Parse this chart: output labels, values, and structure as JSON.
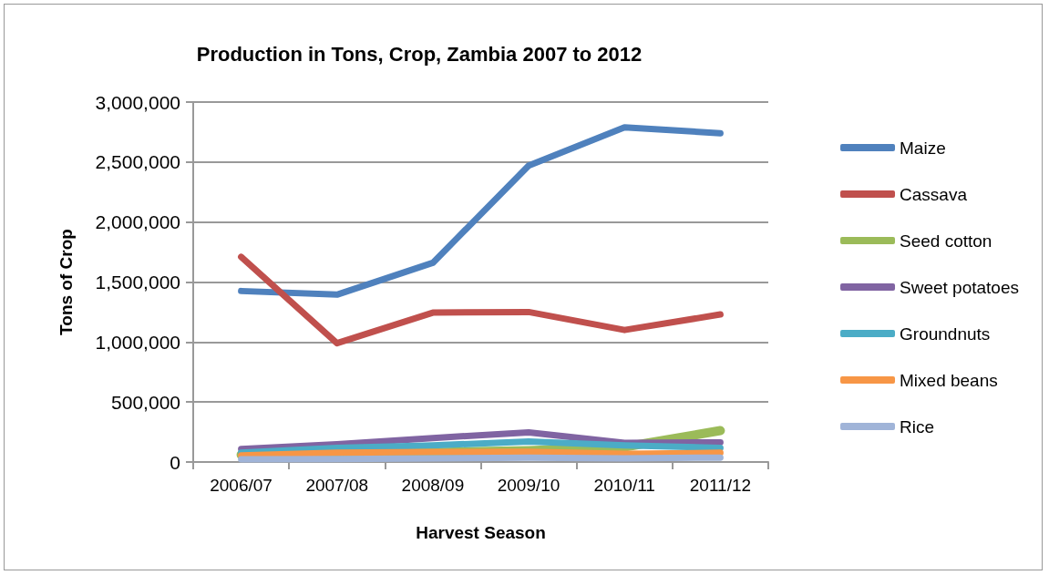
{
  "chart_data": {
    "type": "line",
    "title": "Production in Tons, Crop, Zambia 2007 to 2012",
    "xlabel": "Harvest Season",
    "ylabel": "Tons of Crop",
    "categories": [
      "2006/07",
      "2007/08",
      "2008/09",
      "2009/10",
      "2010/11",
      "2011/12"
    ],
    "series": [
      {
        "name": "Maize",
        "color": "#4f81bd",
        "values": [
          1425000,
          1395000,
          1660000,
          2470000,
          2790000,
          2740000
        ]
      },
      {
        "name": "Cassava",
        "color": "#c0504d",
        "values": [
          1710000,
          990000,
          1245000,
          1250000,
          1100000,
          1230000
        ]
      },
      {
        "name": "Seed cotton",
        "color": "#9bbb59",
        "values": [
          60000,
          70000,
          80000,
          95000,
          125000,
          262000
        ]
      },
      {
        "name": "Sweet potatoes",
        "color": "#8064a2",
        "values": [
          108000,
          148000,
          200000,
          247000,
          160000,
          164000
        ]
      },
      {
        "name": "Groundnuts",
        "color": "#4bacc6",
        "values": [
          77000,
          117000,
          139000,
          170000,
          139000,
          117000
        ]
      },
      {
        "name": "Mixed beans",
        "color": "#f79646",
        "values": [
          56000,
          77000,
          83000,
          86000,
          68000,
          77000
        ]
      },
      {
        "name": "Rice",
        "color": "#a0b4d8",
        "values": [
          22000,
          25000,
          31000,
          37000,
          31000,
          37000
        ]
      }
    ],
    "ylim": [
      0,
      3000000
    ],
    "yticks": [
      {
        "value": 0,
        "label": "0"
      },
      {
        "value": 500000,
        "label": "500,000"
      },
      {
        "value": 1000000,
        "label": "1,000,000"
      },
      {
        "value": 1500000,
        "label": "1,500,000"
      },
      {
        "value": 2000000,
        "label": "2,000,000"
      },
      {
        "value": 2500000,
        "label": "2,500,000"
      },
      {
        "value": 3000000,
        "label": "3,000,000"
      }
    ],
    "grid": "y",
    "legend": "right",
    "marker": "none",
    "line_style": "solid"
  }
}
